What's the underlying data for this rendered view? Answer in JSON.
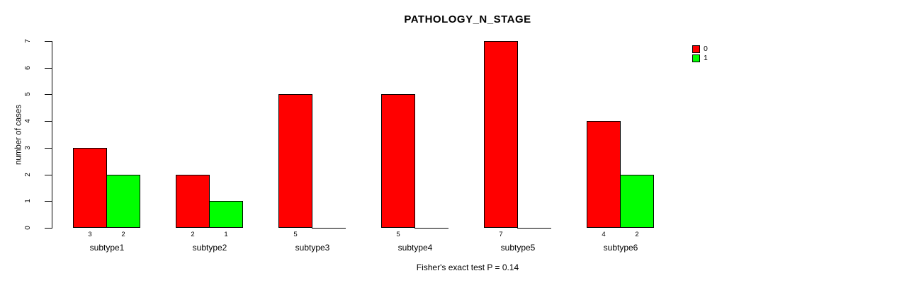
{
  "chart_data": {
    "type": "bar",
    "grouped": true,
    "title": "PATHOLOGY_N_STAGE",
    "ylabel": "number of cases",
    "xlabel": "",
    "categories": [
      "subtype1",
      "subtype2",
      "subtype3",
      "subtype4",
      "subtype5",
      "subtype6"
    ],
    "series": [
      {
        "name": "0",
        "color": "#ff0000",
        "values": [
          3,
          2,
          5,
          5,
          7,
          4
        ]
      },
      {
        "name": "1",
        "color": "#00ff00",
        "values": [
          2,
          1,
          0,
          0,
          0,
          2
        ]
      }
    ],
    "bar_value_labels": {
      "shown_for_nonzero_only": true
    },
    "ylim": [
      0,
      7
    ],
    "yticks": [
      0,
      1,
      2,
      3,
      4,
      5,
      6,
      7
    ],
    "grid": "off",
    "legend": {
      "position": "top-right",
      "entries": [
        {
          "label": "0",
          "color": "#ff0000"
        },
        {
          "label": "1",
          "color": "#00ff00"
        }
      ]
    },
    "annotation": "Fisher's exact test P = 0.14",
    "axis_color": "#000000",
    "background_color": "#ffffff"
  }
}
